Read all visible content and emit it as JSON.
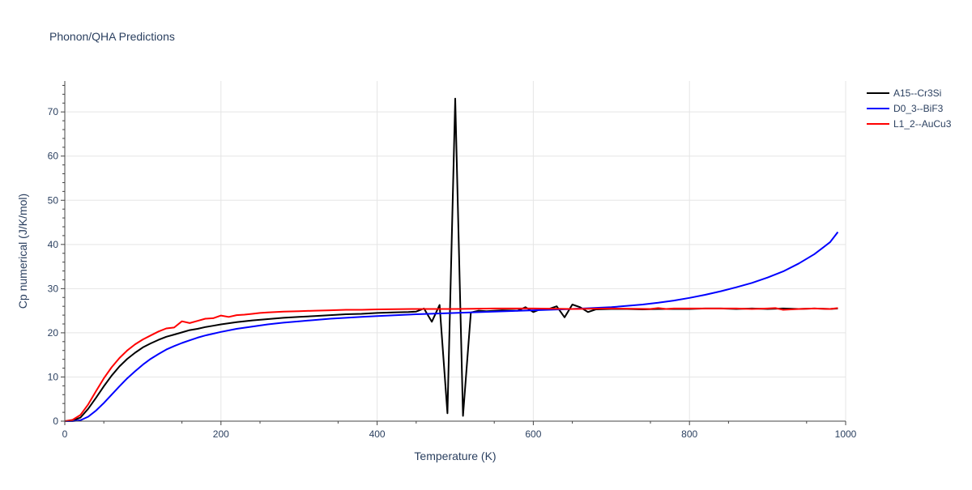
{
  "chart_data": {
    "type": "line",
    "title": "Phonon/QHA Predictions",
    "xlabel": "Temperature (K)",
    "ylabel": "Cp numerical (J/K/mol)",
    "xlim": [
      0,
      1000
    ],
    "ylim": [
      0,
      77
    ],
    "xticks": [
      0,
      200,
      400,
      600,
      800,
      1000
    ],
    "yticks": [
      0,
      10,
      20,
      30,
      40,
      50,
      60,
      70
    ],
    "grid": true,
    "legend_position": "top-right",
    "series": [
      {
        "name": "A15--Cr3Si",
        "color": "#000000",
        "x": [
          0,
          10,
          20,
          30,
          40,
          50,
          60,
          70,
          80,
          90,
          100,
          110,
          120,
          130,
          140,
          150,
          160,
          170,
          180,
          190,
          200,
          220,
          240,
          260,
          280,
          300,
          320,
          340,
          360,
          380,
          400,
          420,
          440,
          450,
          460,
          470,
          480,
          490,
          500,
          510,
          520,
          530,
          540,
          560,
          580,
          590,
          600,
          610,
          620,
          630,
          640,
          650,
          660,
          670,
          680,
          700,
          720,
          740,
          760,
          780,
          800,
          820,
          840,
          860,
          880,
          900,
          920,
          940,
          960,
          980,
          990
        ],
        "y": [
          0,
          0.1,
          0.8,
          2.8,
          5.3,
          7.9,
          10.3,
          12.4,
          14.1,
          15.5,
          16.7,
          17.6,
          18.4,
          19.1,
          19.6,
          20.1,
          20.6,
          20.9,
          21.3,
          21.6,
          21.9,
          22.4,
          22.8,
          23.1,
          23.4,
          23.6,
          23.8,
          24.0,
          24.2,
          24.3,
          24.5,
          24.6,
          24.7,
          24.8,
          25.5,
          22.5,
          26.3,
          1.8,
          73.0,
          1.2,
          24.6,
          25.0,
          24.9,
          25.1,
          25.0,
          25.8,
          24.7,
          25.4,
          25.4,
          26.0,
          23.5,
          26.4,
          25.8,
          24.7,
          25.3,
          25.4,
          25.4,
          25.3,
          25.4,
          25.4,
          25.4,
          25.5,
          25.5,
          25.4,
          25.5,
          25.4,
          25.5,
          25.4,
          25.5,
          25.4,
          25.5
        ]
      },
      {
        "name": "D0_3--BiF3",
        "color": "#0000ff",
        "x": [
          0,
          10,
          20,
          30,
          40,
          50,
          60,
          70,
          80,
          90,
          100,
          110,
          120,
          130,
          140,
          150,
          160,
          170,
          180,
          190,
          200,
          220,
          240,
          260,
          280,
          300,
          320,
          340,
          360,
          380,
          400,
          450,
          500,
          550,
          600,
          650,
          700,
          720,
          740,
          760,
          780,
          800,
          820,
          840,
          860,
          880,
          900,
          920,
          940,
          960,
          980,
          990
        ],
        "y": [
          0,
          0,
          0.2,
          1.0,
          2.4,
          4.1,
          6.0,
          7.9,
          9.7,
          11.3,
          12.8,
          14.1,
          15.2,
          16.2,
          17.0,
          17.7,
          18.3,
          18.9,
          19.4,
          19.8,
          20.2,
          20.9,
          21.4,
          21.9,
          22.3,
          22.6,
          22.9,
          23.2,
          23.4,
          23.6,
          23.8,
          24.2,
          24.5,
          24.8,
          25.1,
          25.4,
          25.8,
          26.1,
          26.4,
          26.8,
          27.3,
          27.9,
          28.6,
          29.4,
          30.3,
          31.3,
          32.5,
          33.9,
          35.7,
          37.8,
          40.5,
          42.8
        ]
      },
      {
        "name": "L1_2--AuCu3",
        "color": "#ff0000",
        "x": [
          0,
          10,
          20,
          30,
          40,
          50,
          60,
          70,
          80,
          90,
          100,
          110,
          120,
          130,
          140,
          150,
          160,
          170,
          180,
          190,
          200,
          210,
          220,
          230,
          240,
          250,
          260,
          280,
          300,
          320,
          340,
          360,
          380,
          400,
          450,
          500,
          550,
          600,
          650,
          700,
          750,
          760,
          770,
          780,
          800,
          820,
          840,
          860,
          880,
          900,
          910,
          920,
          940,
          960,
          980,
          990
        ],
        "y": [
          0,
          0.3,
          1.4,
          3.8,
          6.8,
          9.7,
          12.2,
          14.3,
          16.0,
          17.4,
          18.5,
          19.4,
          20.3,
          21.0,
          21.2,
          22.6,
          22.2,
          22.7,
          23.2,
          23.3,
          23.9,
          23.6,
          24.0,
          24.1,
          24.3,
          24.5,
          24.6,
          24.8,
          24.9,
          25.0,
          25.1,
          25.2,
          25.2,
          25.3,
          25.4,
          25.4,
          25.5,
          25.5,
          25.4,
          25.5,
          25.4,
          25.6,
          25.4,
          25.5,
          25.5,
          25.5,
          25.5,
          25.5,
          25.4,
          25.5,
          25.6,
          25.2,
          25.4,
          25.5,
          25.4,
          25.6
        ]
      }
    ]
  }
}
